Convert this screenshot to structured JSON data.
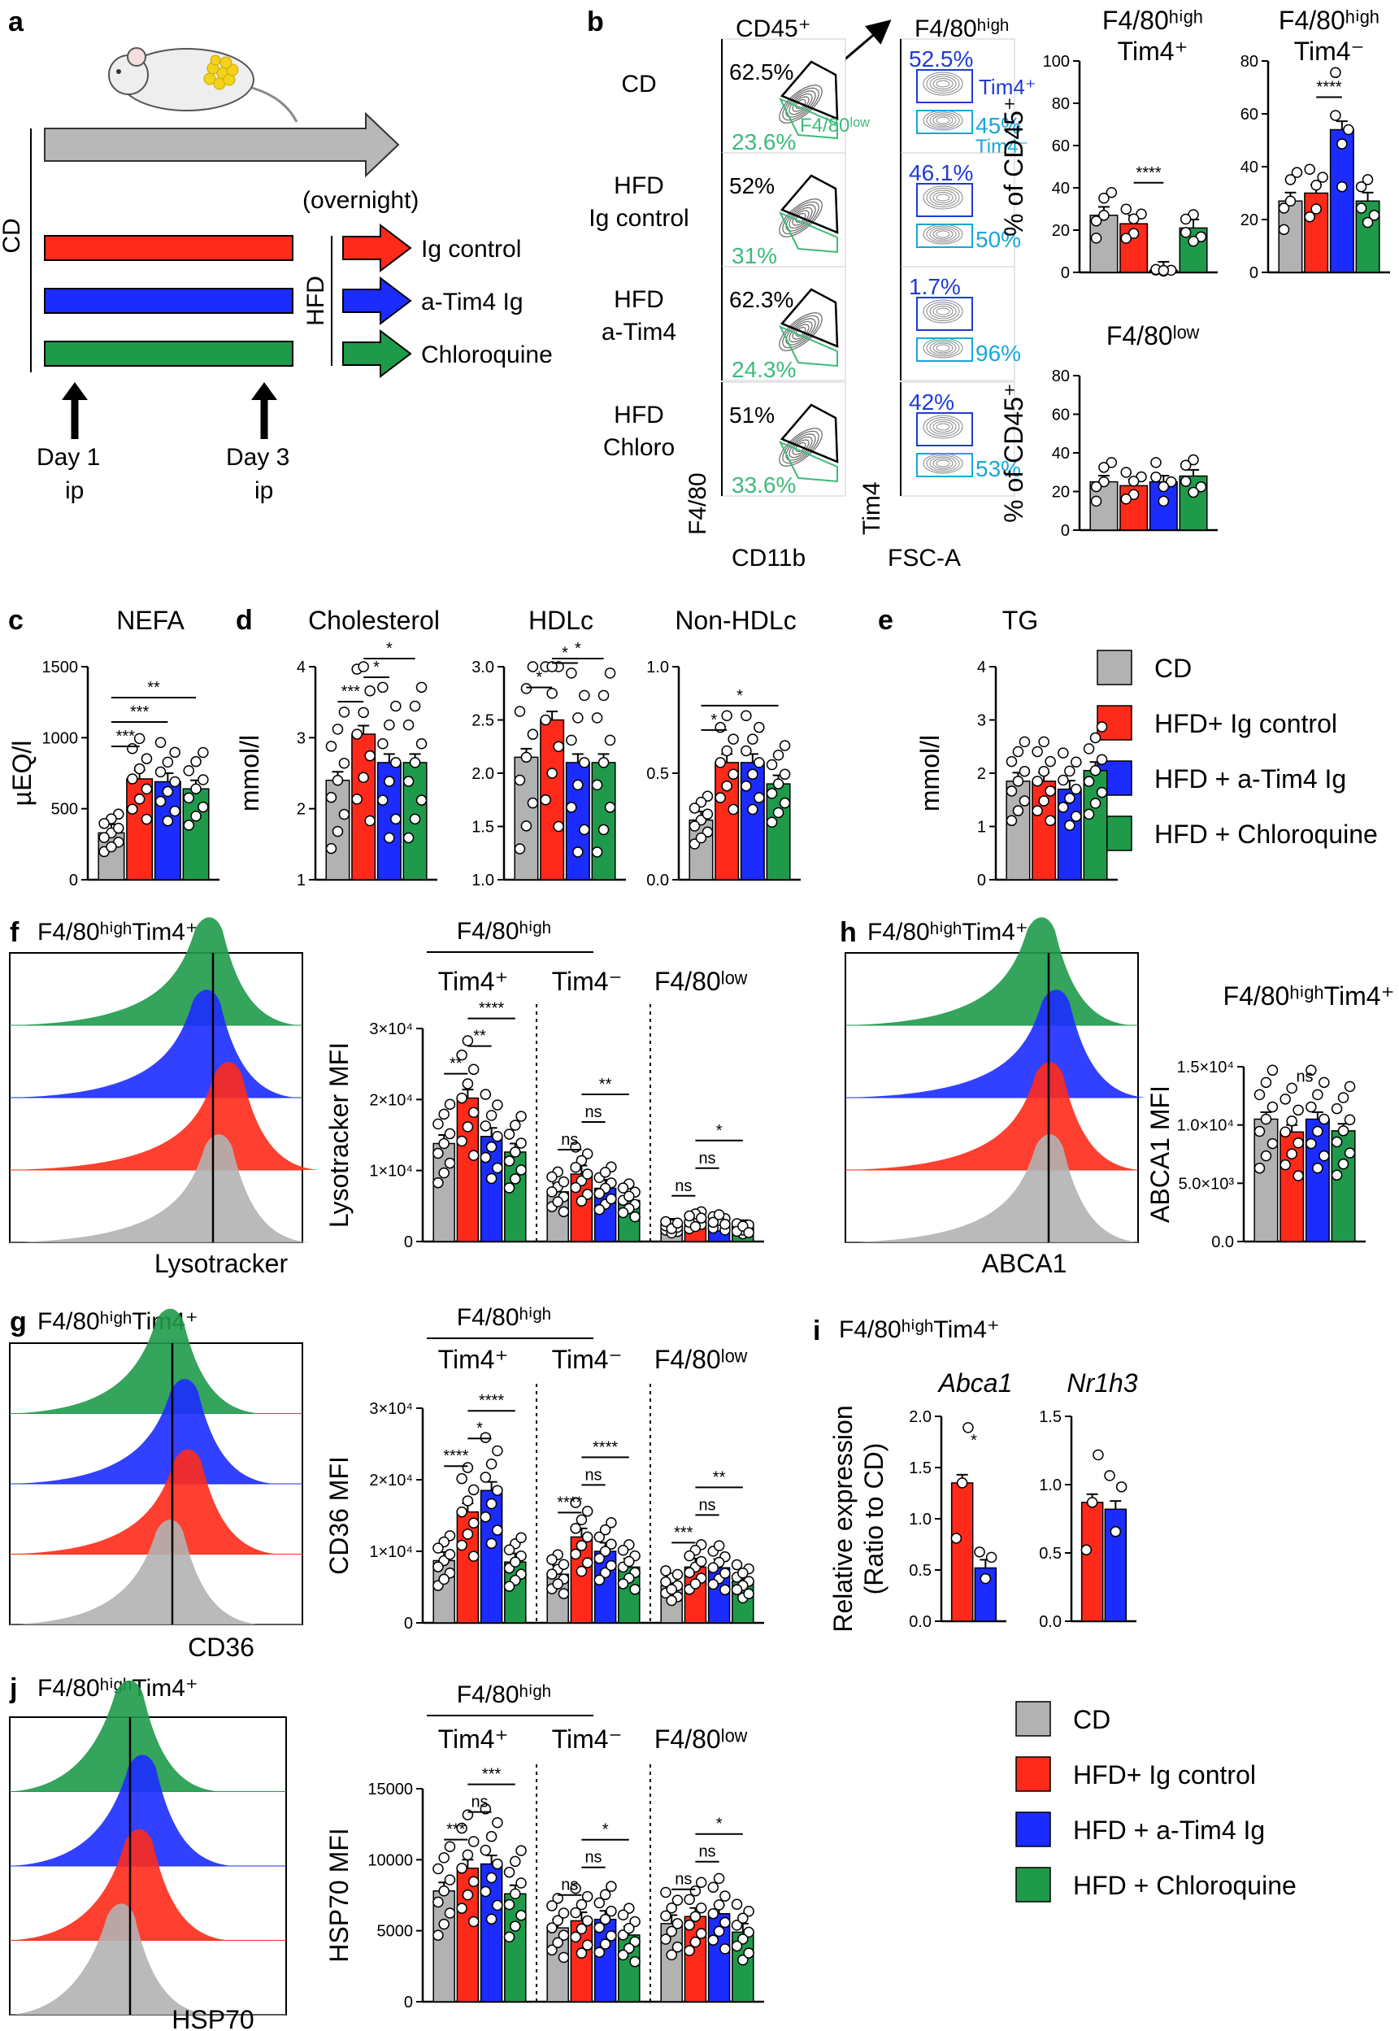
{
  "colors": {
    "CD": "#b2b2b2",
    "IgCtrl": "#ff2a1a",
    "aTim4": "#1c2cff",
    "Chloro": "#1f9a4a",
    "gateBlack": "#000000",
    "gateGreen": "#3dbb7a",
    "gateBlue": "#1f3ad6",
    "gateCyan": "#17a7d9",
    "timeline": "#b8b8b8"
  },
  "panel_a": {
    "letter": "a",
    "diet_cd": "CD",
    "diet_hfd": "HFD",
    "overnight": "(overnight)",
    "arrows": [
      {
        "label": "Ig control",
        "color": "IgCtrl"
      },
      {
        "label": "a-Tim4 Ig",
        "color": "aTim4"
      },
      {
        "label": "Chloroquine",
        "color": "Chloro"
      }
    ],
    "day1": "Day 1",
    "day1_route": "ip",
    "day3": "Day 3",
    "day3_route": "ip"
  },
  "panel_b": {
    "letter": "b",
    "col1_title": "CD45⁺",
    "col2_title": "F4/80ʰⁱᵍʰ",
    "rows": [
      {
        "label_1": "CD",
        "label_2": "",
        "high": "62.5%",
        "low": "23.6%",
        "low_name": "F4/80ˡᵒʷ",
        "tim4pos": "52.5%",
        "tim4pos_name": "Tim4⁺",
        "tim4neg": "45%",
        "tim4neg_name": "Tim4⁻"
      },
      {
        "label_1": "HFD",
        "label_2": "Ig control",
        "high": "52%",
        "low": "31%",
        "low_name": "",
        "tim4pos": "46.1%",
        "tim4pos_name": "",
        "tim4neg": "50%",
        "tim4neg_name": ""
      },
      {
        "label_1": "HFD",
        "label_2": "a-Tim4",
        "high": "62.3%",
        "low": "24.3%",
        "low_name": "",
        "tim4pos": "1.7%",
        "tim4pos_name": "",
        "tim4neg": "96%",
        "tim4neg_name": ""
      },
      {
        "label_1": "HFD",
        "label_2": "Chloro",
        "high": "51%",
        "low": "33.6%",
        "low_name": "",
        "tim4pos": "42%",
        "tim4pos_name": "",
        "tim4neg": "53%",
        "tim4neg_name": ""
      }
    ],
    "axis_y1": "F4/80",
    "axis_x1": "CD11b",
    "axis_y2": "Tim4",
    "axis_x2": "FSC-A"
  },
  "legend": {
    "items": [
      {
        "label": "CD",
        "color": "CD"
      },
      {
        "label": "HFD+ Ig control",
        "color": "IgCtrl"
      },
      {
        "label": "HFD + a-Tim4 Ig",
        "color": "aTim4"
      },
      {
        "label": "HFD + Chloroquine",
        "color": "Chloro"
      }
    ]
  },
  "histograms": [
    {
      "letter": "f",
      "title": "F4/80ʰⁱᵍʰTim4⁺",
      "xlabel": "Lysotracker"
    },
    {
      "letter": "g",
      "title": "F4/80ʰⁱᵍʰTim4⁺",
      "xlabel": "CD36"
    },
    {
      "letter": "h",
      "title": "F4/80ʰⁱᵍʰTim4⁺",
      "xlabel": "ABCA1"
    },
    {
      "letter": "j",
      "title": "F4/80ʰⁱᵍʰTim4⁺",
      "xlabel": "HSP70"
    }
  ],
  "chart_data": [
    {
      "id": "b_tim4pos",
      "type": "bar",
      "title": "F4/80ʰⁱᵍʰ",
      "title2": "Tim4⁺",
      "ylabel": "% of CD45⁺",
      "ylim": [
        0,
        100
      ],
      "yticks": [
        "0",
        "20",
        "40",
        "60",
        "80",
        "100"
      ],
      "groups": [
        {
          "label": "",
          "values": [
            27,
            23,
            1,
            21
          ]
        }
      ],
      "sig": [
        "****"
      ]
    },
    {
      "id": "b_tim4neg",
      "type": "bar",
      "title": "F4/80ʰⁱᵍʰ",
      "title2": "Tim4⁻",
      "ylabel": "",
      "ylim": [
        0,
        80
      ],
      "yticks": [
        "0",
        "20",
        "40",
        "60",
        "80"
      ],
      "groups": [
        {
          "label": "",
          "values": [
            27,
            30,
            54,
            27
          ]
        }
      ],
      "sig": [
        "****"
      ]
    },
    {
      "id": "b_low",
      "type": "bar",
      "title": "F4/80ˡᵒʷ",
      "title2": "",
      "ylabel": "% of CD45⁺",
      "ylim": [
        0,
        80
      ],
      "yticks": [
        "0",
        "20",
        "40",
        "60",
        "80"
      ],
      "groups": [
        {
          "label": "",
          "values": [
            25,
            23,
            25,
            28
          ]
        }
      ],
      "sig": []
    },
    {
      "id": "c_nefa",
      "type": "bar",
      "letter": "c",
      "title": "NEFA",
      "ylabel": "µEQ/l",
      "ylim": [
        0,
        1500
      ],
      "yticks": [
        "0",
        "500",
        "1000",
        "1500"
      ],
      "groups": [
        {
          "label": "",
          "values": [
            330,
            710,
            690,
            640
          ]
        }
      ],
      "sig": [
        "***",
        "***",
        "**"
      ]
    },
    {
      "id": "d_chol",
      "type": "bar",
      "letter": "d",
      "title": "Cholesterol",
      "ylabel": "mmol/l",
      "ylim": [
        1,
        4
      ],
      "yticks": [
        "1",
        "2",
        "3",
        "4"
      ],
      "groups": [
        {
          "label": "",
          "values": [
            2.4,
            3.05,
            2.65,
            2.65
          ]
        }
      ],
      "sig": [
        "***",
        "*",
        "*"
      ]
    },
    {
      "id": "d_hdl",
      "type": "bar",
      "title": "HDLc",
      "ylabel": "",
      "ylim": [
        1,
        3
      ],
      "yticks": [
        "1.0",
        "1.5",
        "2.0",
        "2.5",
        "3.0"
      ],
      "groups": [
        {
          "label": "",
          "values": [
            2.15,
            2.5,
            2.1,
            2.1
          ]
        }
      ],
      "sig": [
        "*",
        "*",
        "*"
      ]
    },
    {
      "id": "d_nonhdl",
      "type": "bar",
      "title": "Non-HDLc",
      "ylabel": "",
      "ylim": [
        0,
        1
      ],
      "yticks": [
        "0.0",
        "0.5",
        "1.0"
      ],
      "groups": [
        {
          "label": "",
          "values": [
            0.28,
            0.55,
            0.55,
            0.45
          ]
        }
      ],
      "sig": [
        "*",
        "*"
      ]
    },
    {
      "id": "e_tg",
      "type": "bar",
      "letter": "e",
      "title": "TG",
      "ylabel": "mmol/l",
      "ylim": [
        0,
        4
      ],
      "yticks": [
        "0",
        "1",
        "2",
        "3",
        "4"
      ],
      "groups": [
        {
          "label": "",
          "values": [
            1.85,
            1.85,
            1.7,
            2.05
          ]
        }
      ],
      "sig": []
    },
    {
      "id": "f_lyso",
      "type": "bar",
      "title": "F4/80ʰⁱᵍʰ",
      "ylabel": "Lysotracker MFI",
      "ylim": [
        0,
        30000
      ],
      "yticks": [
        "0",
        "1×10⁴",
        "2×10⁴",
        "3×10⁴"
      ],
      "groups": [
        {
          "label": "Tim4⁺",
          "values": [
            13800,
            20200,
            14800,
            12600
          ]
        },
        {
          "label": "Tim4⁻",
          "values": [
            7000,
            9500,
            7500,
            5800
          ]
        },
        {
          "label": "F4/80ˡᵒʷ",
          "values": [
            2000,
            3000,
            2700,
            1800
          ]
        }
      ],
      "sig": [
        "**",
        "**",
        "****",
        "ns",
        "ns",
        "**",
        "ns",
        "ns",
        "*"
      ]
    },
    {
      "id": "g_cd36",
      "type": "bar",
      "title": "F4/80ʰⁱᵍʰ",
      "ylabel": "CD36 MFI",
      "ylim": [
        0,
        30000
      ],
      "yticks": [
        "0",
        "1×10⁴",
        "2×10⁴",
        "3×10⁴"
      ],
      "groups": [
        {
          "label": "Tim4⁺",
          "values": [
            8700,
            15500,
            18500,
            8500
          ]
        },
        {
          "label": "Tim4⁻",
          "values": [
            6800,
            12000,
            10000,
            7800
          ]
        },
        {
          "label": "F4/80ˡᵒʷ",
          "values": [
            5200,
            7800,
            7700,
            5800
          ]
        }
      ],
      "sig": [
        "****",
        "*",
        "****",
        "****",
        "ns",
        "****",
        "***",
        "ns",
        "**"
      ]
    },
    {
      "id": "h_abca1",
      "type": "bar",
      "title": "F4/80ʰⁱᵍʰTim4⁺",
      "ylabel": "ABCA1 MFI",
      "ylim": [
        0,
        15000
      ],
      "yticks": [
        "0.0",
        "5.0×10³",
        "1.0×10⁴",
        "1.5×10⁴"
      ],
      "groups": [
        {
          "label": "",
          "values": [
            10500,
            9400,
            10500,
            9500
          ]
        }
      ],
      "sig": [
        "ns"
      ]
    },
    {
      "id": "i_abca1",
      "type": "bar",
      "letter": "i",
      "title": "Abca1",
      "panel_title": "F4/80ʰⁱᵍʰTim4⁺",
      "ylabel": "Relative expression",
      "ylabel2": "(Ratio to CD)",
      "ylim": [
        0,
        2
      ],
      "yticks": [
        "0.0",
        "0.5",
        "1.0",
        "1.5",
        "2.0"
      ],
      "groups": [
        {
          "label": "",
          "values": [
            1.35,
            0.52
          ]
        }
      ],
      "sig": [
        "*"
      ]
    },
    {
      "id": "i_nr1h3",
      "type": "bar",
      "title": "Nr1h3",
      "ylabel": "",
      "ylim": [
        0,
        1.5
      ],
      "yticks": [
        "0.0",
        "0.5",
        "1.0",
        "1.5"
      ],
      "groups": [
        {
          "label": "",
          "values": [
            0.87,
            0.82
          ]
        }
      ],
      "sig": []
    },
    {
      "id": "j_hsp70",
      "type": "bar",
      "title": "F4/80ʰⁱᵍʰ",
      "ylabel": "HSP70 MFI",
      "ylim": [
        0,
        15000
      ],
      "yticks": [
        "0",
        "5000",
        "10000",
        "15000"
      ],
      "groups": [
        {
          "label": "Tim4⁺",
          "values": [
            7800,
            9400,
            9700,
            7600
          ]
        },
        {
          "label": "Tim4⁻",
          "values": [
            5200,
            5700,
            5800,
            4700
          ]
        },
        {
          "label": "F4/80ˡᵒʷ",
          "values": [
            5500,
            6000,
            6200,
            4900
          ]
        }
      ],
      "sig": [
        "***",
        "ns",
        "***",
        "ns",
        "ns",
        "*",
        "ns",
        "ns",
        "*"
      ]
    }
  ]
}
